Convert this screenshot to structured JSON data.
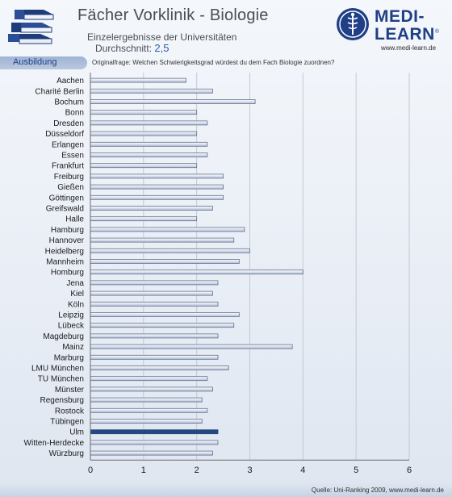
{
  "header": {
    "title": "Fächer Vorklinik - Biologie",
    "subtitle": "Einzelergebnisse der Universitäten",
    "average_label": "Durchschnitt:",
    "average_value": "2,5"
  },
  "logo": {
    "line1": "MEDI-",
    "line2": "LEARN",
    "registered": "®",
    "url": "www.medi-learn.de"
  },
  "section": {
    "label": "Ausbildung",
    "question": "Originalfrage: Welchen Schwierigkeitsgrad würdest du dem Fach Biologie zuordnen?"
  },
  "footer": {
    "source": "Quelle: Uni-Ranking 2009, www.medi-learn.de"
  },
  "colors": {
    "bar_top": "#ffffff",
    "bar_bottom": "#b4c0d6",
    "bar_border": "#5e6f90",
    "highlight": "#24487f",
    "axis": "#6b6b6b",
    "brand": "#1f3f86"
  },
  "chart_data": {
    "type": "bar",
    "orientation": "horizontal",
    "categories": [
      "Aachen",
      "Charité Berlin",
      "Bochum",
      "Bonn",
      "Dresden",
      "Düsseldorf",
      "Erlangen",
      "Essen",
      "Frankfurt",
      "Freiburg",
      "Gießen",
      "Göttingen",
      "Greifswald",
      "Halle",
      "Hamburg",
      "Hannover",
      "Heidelberg",
      "Mannheim",
      "Homburg",
      "Jena",
      "Kiel",
      "Köln",
      "Leipzig",
      "Lübeck",
      "Magdeburg",
      "Mainz",
      "Marburg",
      "LMU München",
      "TU München",
      "Münster",
      "Regensburg",
      "Rostock",
      "Tübingen",
      "Ulm",
      "Witten-Herdecke",
      "Würzburg"
    ],
    "values": [
      1.8,
      2.3,
      3.1,
      2.0,
      2.2,
      2.0,
      2.2,
      2.2,
      2.0,
      2.5,
      2.5,
      2.5,
      2.3,
      2.0,
      2.9,
      2.7,
      3.0,
      2.8,
      4.0,
      2.4,
      2.3,
      2.4,
      2.8,
      2.7,
      2.4,
      3.8,
      2.4,
      2.6,
      2.2,
      2.3,
      2.1,
      2.2,
      2.1,
      2.4,
      2.4,
      2.3
    ],
    "highlight_category": "Ulm",
    "xlim": [
      0,
      6
    ],
    "xticks": [
      "0",
      "1",
      "2",
      "3",
      "4",
      "5",
      "6"
    ],
    "grid": true,
    "legend": "none"
  }
}
